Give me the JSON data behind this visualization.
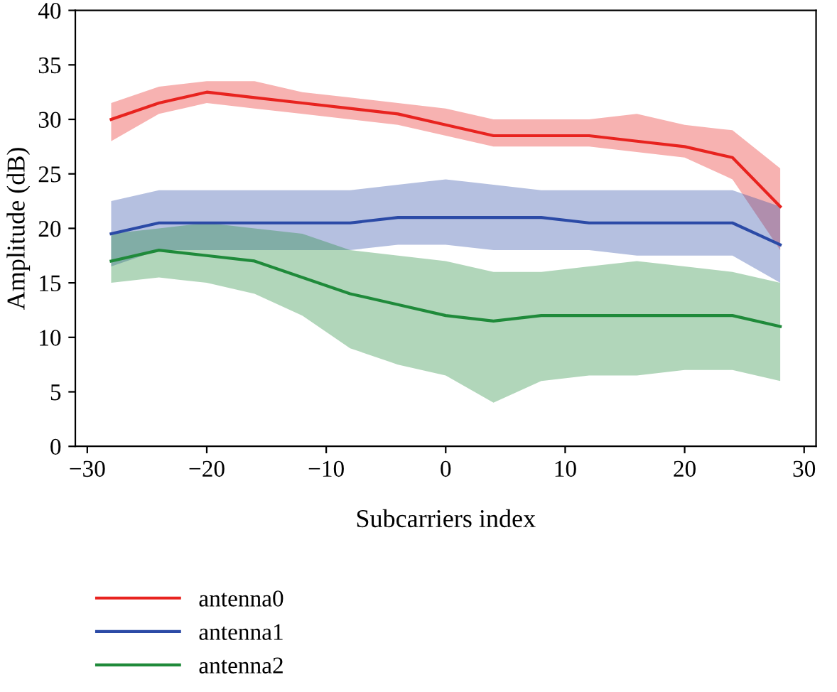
{
  "chart_data": {
    "type": "line",
    "xlabel": "Subcarriers index",
    "ylabel": "Amplitude (dB)",
    "x": [
      -28,
      -24,
      -20,
      -16,
      -12,
      -8,
      -4,
      0,
      4,
      8,
      12,
      16,
      20,
      24,
      28
    ],
    "xlim": [
      -31,
      31
    ],
    "xticks": [
      {
        "value": -30,
        "label": "−30"
      },
      {
        "value": -20,
        "label": "−20"
      },
      {
        "value": -10,
        "label": "−10"
      },
      0,
      10,
      20,
      30
    ],
    "ylim": [
      0,
      40
    ],
    "yticks": [
      0,
      5,
      10,
      15,
      20,
      25,
      30,
      35,
      40
    ],
    "grid": false,
    "legend": "bottom",
    "marker": "none",
    "line_style": "solid",
    "series": [
      {
        "name": "antenna0",
        "color": "#e8231f",
        "values": [
          30,
          31.5,
          32.5,
          32,
          31.5,
          31,
          30.5,
          29.5,
          28.5,
          28.5,
          28.5,
          28,
          27.5,
          26.5,
          22
        ],
        "lower": [
          28,
          30.5,
          31.5,
          31,
          30.5,
          30,
          29.5,
          28.5,
          27.5,
          27.5,
          27.5,
          27,
          26.5,
          24.5,
          18
        ],
        "upper": [
          31.5,
          33,
          33.5,
          33.5,
          32.5,
          32,
          31.5,
          31,
          30,
          30,
          30,
          30.5,
          29.5,
          29,
          25.5
        ]
      },
      {
        "name": "antenna1",
        "color": "#2b4aa6",
        "values": [
          19.5,
          20.5,
          20.5,
          20.5,
          20.5,
          20.5,
          21,
          21,
          21,
          21,
          20.5,
          20.5,
          20.5,
          20.5,
          18.5
        ],
        "lower": [
          16.5,
          18,
          18,
          18,
          18,
          18,
          18.5,
          18.5,
          18,
          18,
          18,
          17.5,
          17.5,
          17.5,
          15
        ],
        "upper": [
          22.5,
          23.5,
          23.5,
          23.5,
          23.5,
          23.5,
          24,
          24.5,
          24,
          23.5,
          23.5,
          23.5,
          23.5,
          23.5,
          22
        ]
      },
      {
        "name": "antenna2",
        "color": "#1f8a3a",
        "values": [
          17,
          18,
          17.5,
          17,
          15.5,
          14,
          13,
          12,
          11.5,
          12,
          12,
          12,
          12,
          12,
          11
        ],
        "lower": [
          15,
          15.5,
          15,
          14,
          12,
          9,
          7.5,
          6.5,
          4,
          6,
          6.5,
          6.5,
          7,
          7,
          6
        ],
        "upper": [
          19.5,
          20,
          20.5,
          20,
          19.5,
          18,
          17.5,
          17,
          16,
          16,
          16.5,
          17,
          16.5,
          16,
          15
        ]
      }
    ]
  }
}
